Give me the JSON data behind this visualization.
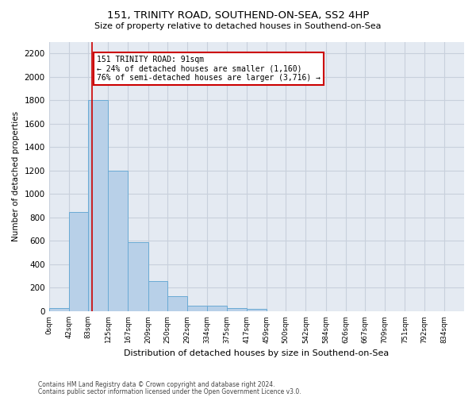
{
  "title_line1": "151, TRINITY ROAD, SOUTHEND-ON-SEA, SS2 4HP",
  "title_line2": "Size of property relative to detached houses in Southend-on-Sea",
  "xlabel": "Distribution of detached houses by size in Southend-on-Sea",
  "ylabel": "Number of detached properties",
  "bin_edges": [
    0,
    42,
    83,
    125,
    167,
    209,
    250,
    292,
    334,
    375,
    417,
    459,
    500,
    542,
    584,
    626,
    667,
    709,
    751,
    792,
    834
  ],
  "bar_heights": [
    25,
    845,
    1800,
    1200,
    590,
    260,
    125,
    50,
    45,
    30,
    20,
    0,
    0,
    0,
    0,
    0,
    0,
    0,
    0,
    0
  ],
  "bar_color": "#b8d0e8",
  "bar_edgecolor": "#6aaad4",
  "subject_value": 91,
  "subject_label": "151 TRINITY ROAD: 91sqm",
  "annotation_line2": "← 24% of detached houses are smaller (1,160)",
  "annotation_line3": "76% of semi-detached houses are larger (3,716) →",
  "annotation_box_color": "#ffffff",
  "annotation_box_edgecolor": "#cc0000",
  "vline_color": "#cc0000",
  "ylim": [
    0,
    2300
  ],
  "yticks": [
    0,
    200,
    400,
    600,
    800,
    1000,
    1200,
    1400,
    1600,
    1800,
    2000,
    2200
  ],
  "grid_color": "#c8d0dc",
  "bg_color": "#e4eaf2",
  "footer_line1": "Contains HM Land Registry data © Crown copyright and database right 2024.",
  "footer_line2": "Contains public sector information licensed under the Open Government Licence v3.0."
}
